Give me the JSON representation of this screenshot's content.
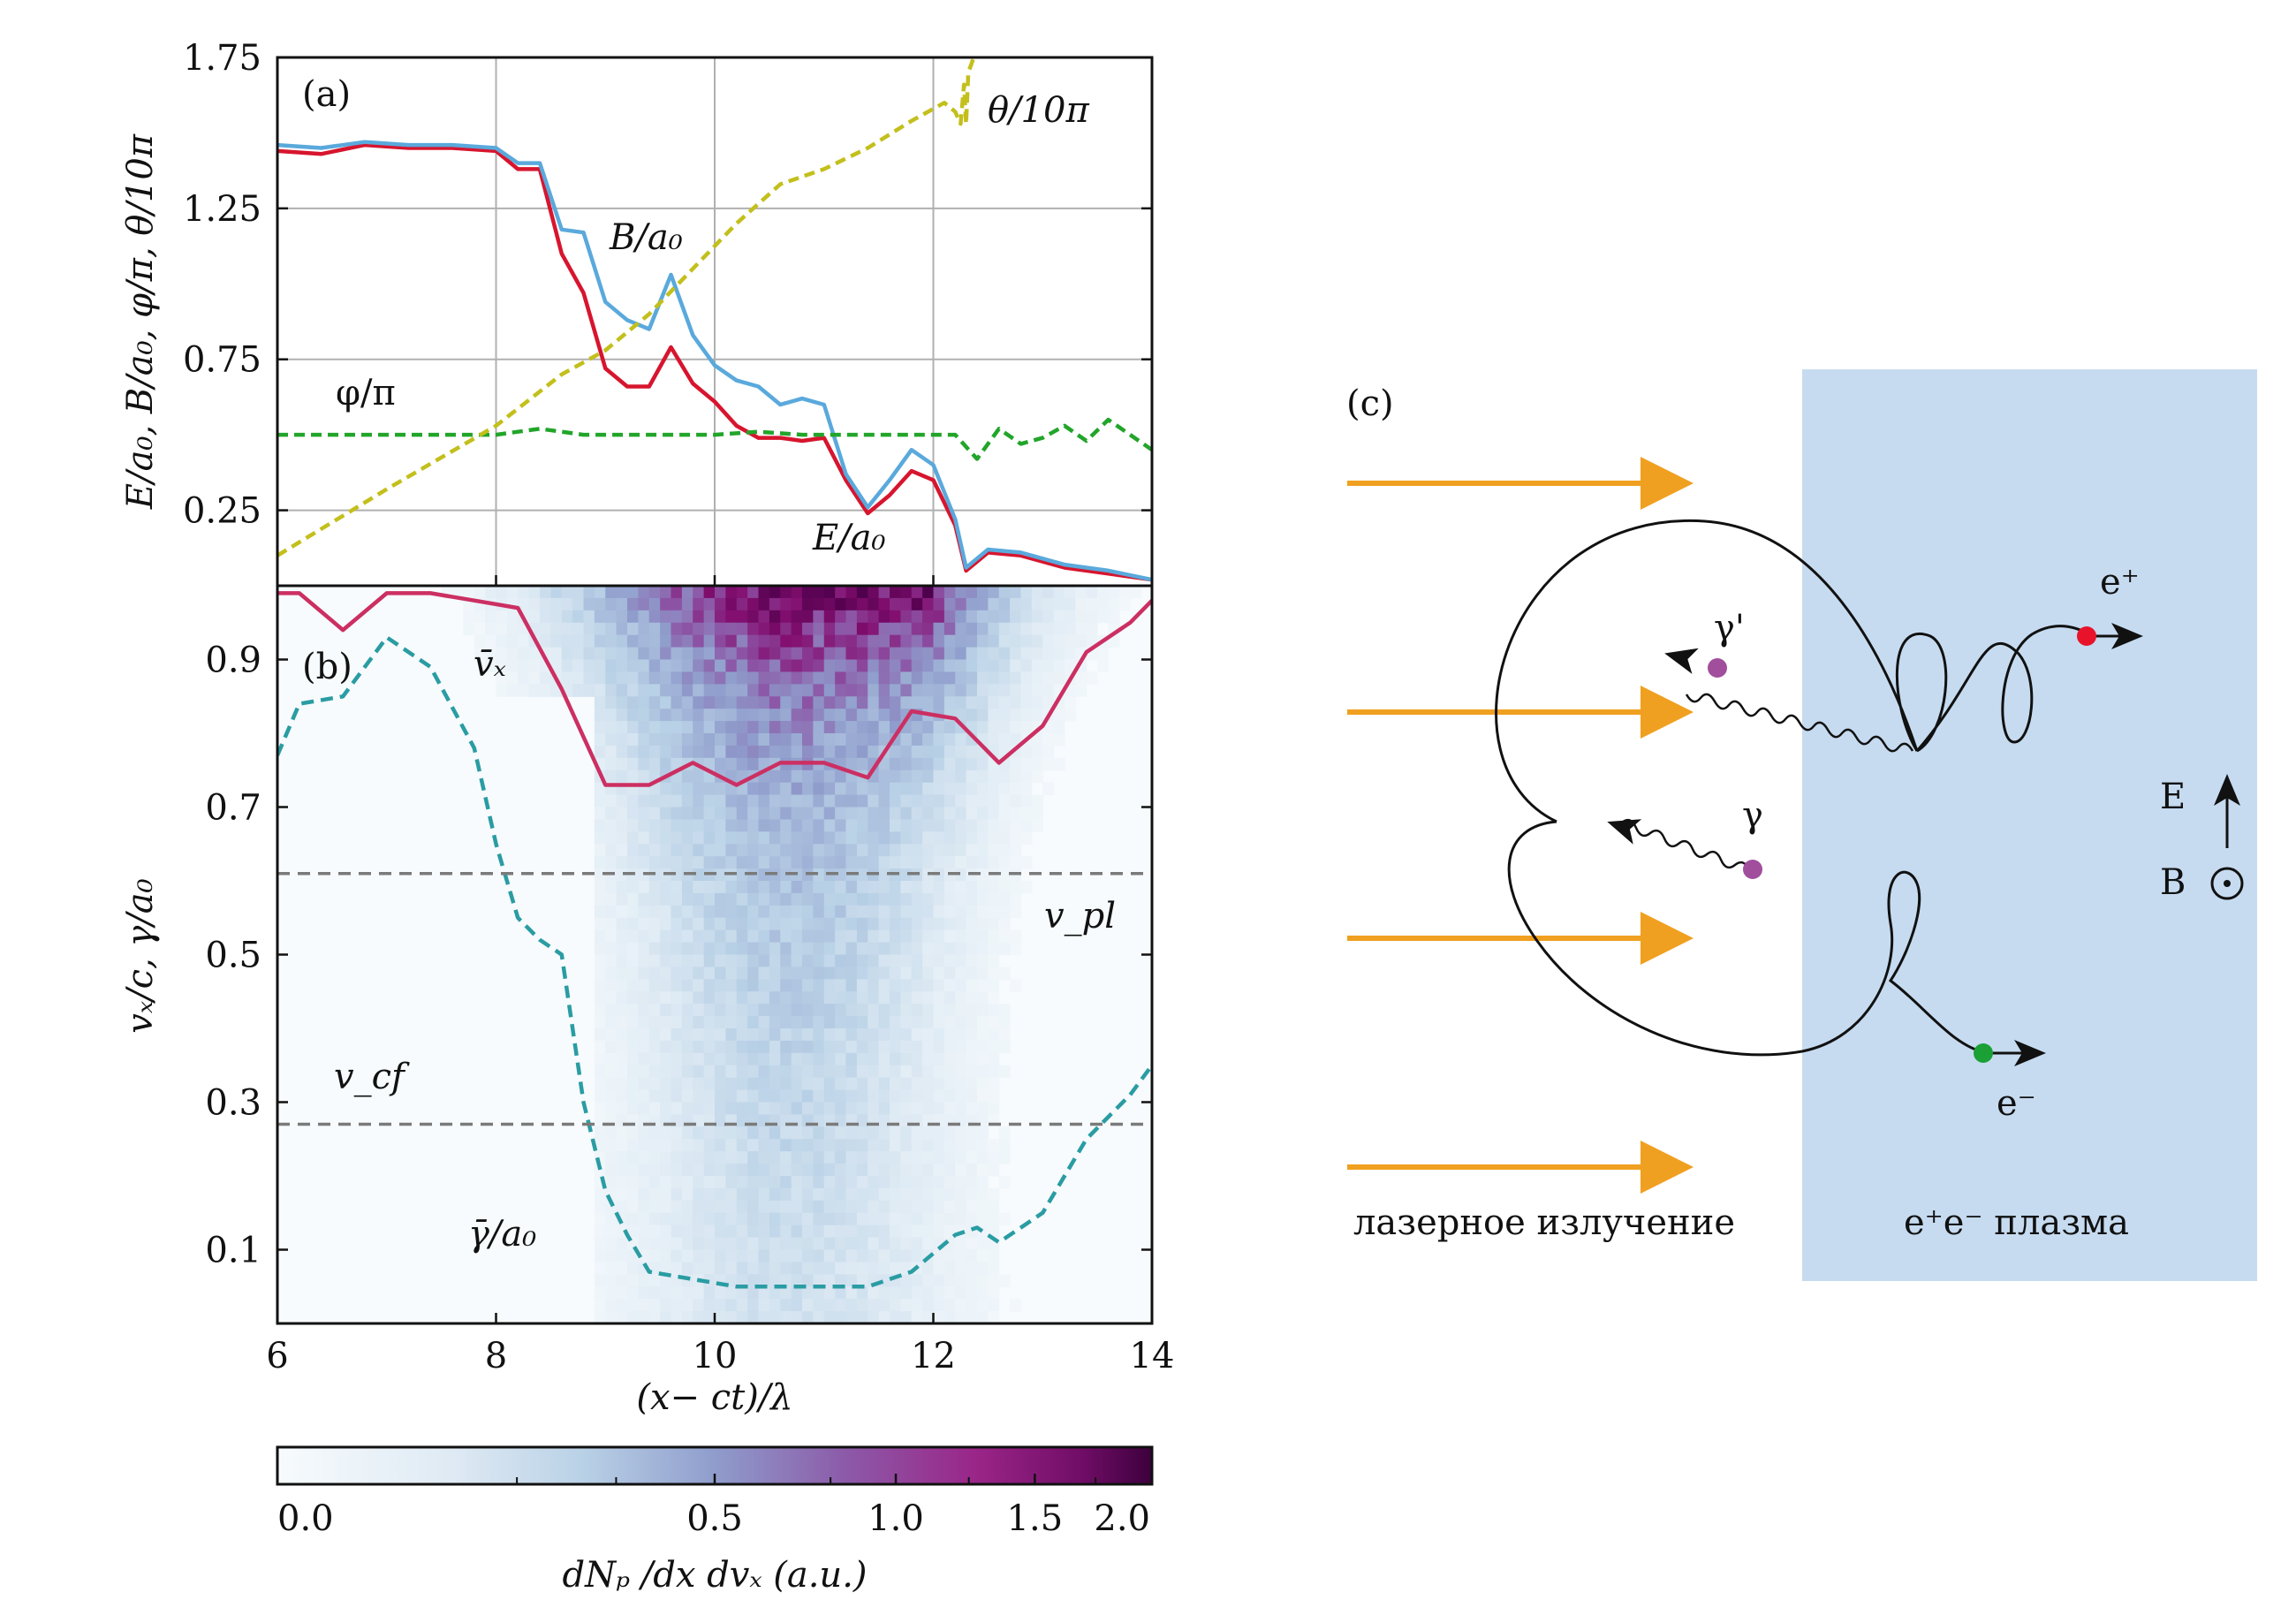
{
  "chart_data": [
    {
      "panel": "(a)",
      "type": "line",
      "ylabel": "E/a₀, B/a₀, φ/π, θ/10π",
      "xlim": [
        6,
        14
      ],
      "ylim": [
        0,
        1.75
      ],
      "yticks": [
        "0.25",
        "0.75",
        "1.25",
        "1.75"
      ],
      "ytick_values": [
        0.25,
        0.75,
        1.25,
        1.75
      ],
      "grid": true,
      "series": [
        {
          "name": "E/a₀",
          "color": "#d7152e",
          "style": "solid",
          "x": [
            6,
            6.4,
            6.8,
            7.2,
            7.6,
            8.0,
            8.2,
            8.4,
            8.6,
            8.8,
            9.0,
            9.2,
            9.4,
            9.6,
            9.8,
            10.0,
            10.2,
            10.4,
            10.6,
            10.8,
            11.0,
            11.2,
            11.4,
            11.6,
            11.8,
            12.0,
            12.2,
            12.3,
            12.5,
            12.8,
            13.2,
            13.6,
            14.0
          ],
          "y": [
            1.44,
            1.43,
            1.46,
            1.45,
            1.45,
            1.44,
            1.38,
            1.38,
            1.1,
            0.97,
            0.72,
            0.66,
            0.66,
            0.79,
            0.67,
            0.61,
            0.53,
            0.49,
            0.49,
            0.48,
            0.49,
            0.35,
            0.24,
            0.3,
            0.38,
            0.35,
            0.2,
            0.05,
            0.11,
            0.1,
            0.06,
            0.04,
            0.02
          ]
        },
        {
          "name": "B/a₀",
          "color": "#5aa9dc",
          "style": "solid",
          "x": [
            6,
            6.4,
            6.8,
            7.2,
            7.6,
            8.0,
            8.2,
            8.4,
            8.6,
            8.8,
            9.0,
            9.2,
            9.4,
            9.6,
            9.8,
            10.0,
            10.2,
            10.4,
            10.6,
            10.8,
            11.0,
            11.2,
            11.4,
            11.6,
            11.8,
            12.0,
            12.2,
            12.3,
            12.5,
            12.8,
            13.2,
            13.6,
            14.0
          ],
          "y": [
            1.46,
            1.45,
            1.47,
            1.46,
            1.46,
            1.45,
            1.4,
            1.4,
            1.18,
            1.17,
            0.94,
            0.88,
            0.85,
            1.03,
            0.83,
            0.73,
            0.68,
            0.66,
            0.6,
            0.62,
            0.6,
            0.37,
            0.26,
            0.35,
            0.45,
            0.4,
            0.22,
            0.06,
            0.12,
            0.11,
            0.07,
            0.05,
            0.02
          ]
        },
        {
          "name": "φ/π",
          "color": "#22a52a",
          "style": "dashed",
          "x": [
            6,
            7,
            8,
            8.4,
            8.8,
            9.2,
            9.6,
            10.0,
            10.4,
            10.8,
            11.2,
            11.6,
            12.0,
            12.2,
            12.4,
            12.6,
            12.8,
            13.0,
            13.2,
            13.4,
            13.6,
            13.8,
            14.0
          ],
          "y": [
            0.5,
            0.5,
            0.5,
            0.52,
            0.5,
            0.5,
            0.5,
            0.5,
            0.51,
            0.5,
            0.5,
            0.5,
            0.5,
            0.5,
            0.42,
            0.52,
            0.47,
            0.49,
            0.53,
            0.48,
            0.55,
            0.5,
            0.45
          ]
        },
        {
          "name": "θ/10π",
          "color": "#c3bf1c",
          "style": "dashed",
          "x": [
            6,
            7,
            8,
            8.6,
            9,
            9.4,
            9.8,
            10.2,
            10.6,
            11.0,
            11.4,
            11.8,
            12.1,
            12.2,
            12.25,
            12.28,
            12.3,
            12.32,
            12.4
          ],
          "y": [
            0.1,
            0.32,
            0.53,
            0.7,
            0.78,
            0.9,
            1.05,
            1.2,
            1.33,
            1.38,
            1.45,
            1.54,
            1.6,
            1.57,
            1.53,
            1.66,
            1.53,
            1.7,
            1.78
          ]
        }
      ],
      "labels": {
        "B": "B/a₀",
        "E": "E/a₀",
        "phi": "φ/π",
        "theta": "θ/10π"
      }
    },
    {
      "panel": "(b)",
      "type": "heatmap",
      "xlabel": "(x− ct)/λ",
      "ylabel": "vₓ/c, γ/a₀",
      "xlim": [
        6,
        14
      ],
      "ylim": [
        0,
        1.0
      ],
      "xticks": [
        "6",
        "8",
        "10",
        "12",
        "14"
      ],
      "xtick_values": [
        6,
        8,
        10,
        12,
        14
      ],
      "yticks": [
        "0.1",
        "0.3",
        "0.5",
        "0.7",
        "0.9"
      ],
      "ytick_values": [
        0.1,
        0.3,
        0.5,
        0.7,
        0.9
      ],
      "colorbar": {
        "label": "dNₚ /dx dvₓ (a.u.)",
        "ticks": [
          "0.0",
          "0.5",
          "1.0",
          "1.5",
          "2.0"
        ],
        "tick_values": [
          0.0,
          0.5,
          1.0,
          1.5,
          2.0
        ],
        "colors": [
          "#f7fbfd",
          "#b9d1e6",
          "#8f9dcc",
          "#8c4ea2",
          "#830e6f",
          "#4d004b"
        ]
      },
      "lines": [
        {
          "name": "v̄ₓ",
          "color": "#cc2f62",
          "style": "solid",
          "x": [
            6,
            6.2,
            6.6,
            7.0,
            7.4,
            7.8,
            8.2,
            8.6,
            9.0,
            9.4,
            9.8,
            10.2,
            10.6,
            11.0,
            11.4,
            11.8,
            12.2,
            12.6,
            13.0,
            13.4,
            13.8,
            14.0
          ],
          "y": [
            0.99,
            0.99,
            0.94,
            0.99,
            0.99,
            0.98,
            0.97,
            0.86,
            0.73,
            0.73,
            0.76,
            0.73,
            0.76,
            0.76,
            0.74,
            0.83,
            0.82,
            0.76,
            0.81,
            0.91,
            0.95,
            0.98
          ]
        },
        {
          "name": "γ̄/a₀",
          "color": "#2a9ca3",
          "style": "dashed",
          "x": [
            6,
            6.2,
            6.6,
            7.0,
            7.4,
            7.8,
            8.0,
            8.2,
            8.4,
            8.6,
            8.8,
            9.0,
            9.2,
            9.4,
            9.8,
            10.2,
            10.6,
            11.0,
            11.4,
            11.8,
            12.2,
            12.4,
            12.6,
            13.0,
            13.4,
            13.8,
            14.0
          ],
          "y": [
            0.77,
            0.84,
            0.85,
            0.93,
            0.89,
            0.78,
            0.65,
            0.55,
            0.52,
            0.5,
            0.3,
            0.18,
            0.12,
            0.07,
            0.06,
            0.05,
            0.05,
            0.05,
            0.05,
            0.07,
            0.12,
            0.13,
            0.11,
            0.15,
            0.25,
            0.31,
            0.35
          ]
        },
        {
          "name": "v_pl",
          "color": "#7a7a7a",
          "style": "dashed",
          "x": [
            6,
            14
          ],
          "y": [
            0.61,
            0.61
          ]
        },
        {
          "name": "v_cf",
          "color": "#7a7a7a",
          "style": "dashed",
          "x": [
            6,
            14
          ],
          "y": [
            0.27,
            0.27
          ]
        }
      ],
      "labels": {
        "vx": "v̄ₓ",
        "gamma": "γ̄/a₀",
        "vpl": "v_pl",
        "vcf": "v_cf"
      }
    }
  ],
  "diagram": {
    "panel": "(c)",
    "laser_label": "лазерное излучение",
    "plasma_label": "e⁺e⁻ плазма",
    "gamma_prime": "γ'",
    "gamma": "γ",
    "positron": "e⁺",
    "electron": "e⁻",
    "field_E": "E",
    "field_B": "B",
    "colors": {
      "laser": "#f0a020",
      "plasma": "#c6dbf0",
      "positron": "#e8132a",
      "electron": "#1aa035",
      "photon": "#a14e9d"
    }
  }
}
